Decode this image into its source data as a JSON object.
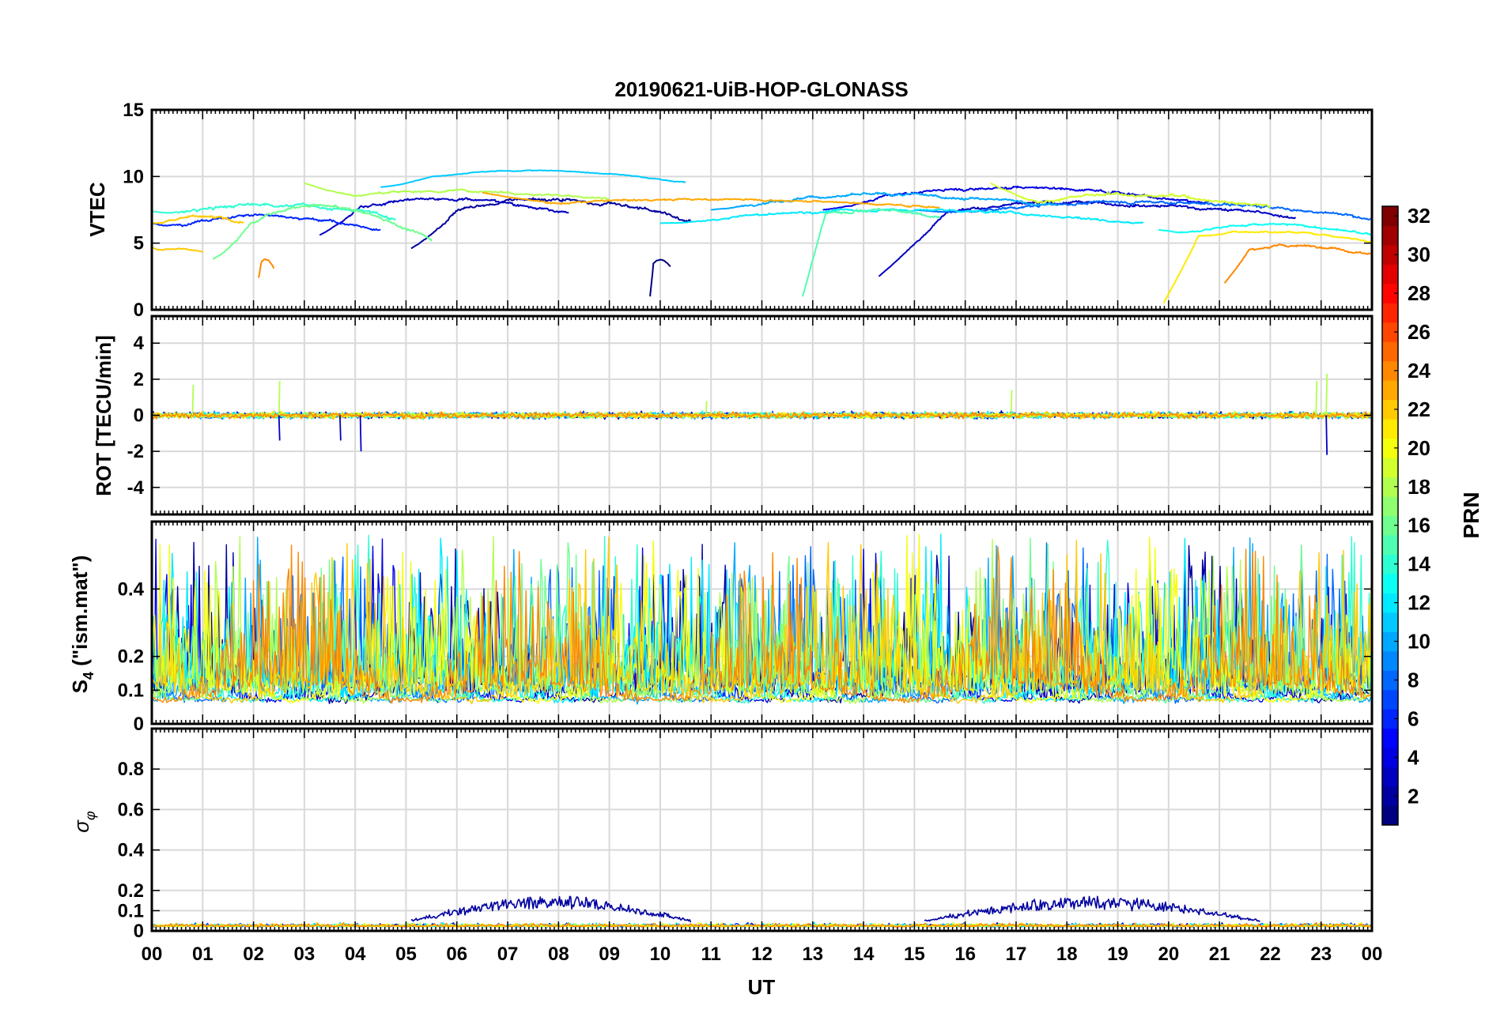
{
  "chart_data": {
    "type": "line",
    "title": "20190621-UiB-HOP-GLONASS",
    "xlabel": "UT",
    "x_range": [
      0,
      24
    ],
    "x_tick_labels": [
      "00",
      "01",
      "02",
      "03",
      "04",
      "05",
      "06",
      "07",
      "08",
      "09",
      "10",
      "11",
      "12",
      "13",
      "14",
      "15",
      "16",
      "17",
      "18",
      "19",
      "20",
      "21",
      "22",
      "23",
      "00"
    ],
    "grid": true,
    "legend": "colorbar right",
    "colorbar": {
      "label": "PRN",
      "range": [
        1,
        32
      ],
      "ticks": [
        "2",
        "4",
        "6",
        "8",
        "10",
        "12",
        "14",
        "16",
        "18",
        "20",
        "22",
        "24",
        "26",
        "28",
        "30",
        "32"
      ]
    },
    "panels": [
      {
        "id": "vtec",
        "ylabel": "VTEC",
        "ylim": [
          0,
          15
        ],
        "ytick_values": [
          0,
          5,
          10,
          15
        ],
        "ytick_labels": [
          "0",
          "5",
          "10",
          "15"
        ],
        "series": [
          {
            "prn": 2,
            "start": 5.1,
            "end": 10.6,
            "base": 7.5,
            "amp": 1.6,
            "noise": 0.35,
            "start_val": 4.6
          },
          {
            "prn": 3,
            "start": 3.3,
            "end": 8.2,
            "base": 7.8,
            "amp": 1.2,
            "noise": 0.3,
            "start_val": 5.6
          },
          {
            "prn": 1,
            "start": 9.8,
            "end": 10.2,
            "base": 3.5,
            "amp": 0.5,
            "noise": 0.1,
            "start_val": 1.0
          },
          {
            "prn": 4,
            "start": 13.2,
            "end": 20.8,
            "base": 8.6,
            "amp": 1.2,
            "noise": 0.3,
            "start_val": 7.5
          },
          {
            "prn": 3,
            "start": 14.3,
            "end": 22.5,
            "base": 7.5,
            "amp": 1.0,
            "noise": 0.3,
            "start_val": 2.5
          },
          {
            "prn": 6,
            "start": 0.0,
            "end": 4.5,
            "base": 6.5,
            "amp": 1.2,
            "noise": 0.3,
            "start_val": 6.5
          },
          {
            "prn": 8,
            "start": 15.0,
            "end": 24.0,
            "base": 7.5,
            "amp": 1.2,
            "noise": 0.3,
            "start_val": 7.5
          },
          {
            "prn": 10,
            "start": 11.0,
            "end": 17.8,
            "base": 8.2,
            "amp": 0.8,
            "noise": 0.3,
            "start_val": 7.5
          },
          {
            "prn": 11,
            "start": 4.5,
            "end": 10.5,
            "base": 10.0,
            "amp": 0.9,
            "noise": 0.1,
            "start_val": 9.2
          },
          {
            "prn": 12,
            "start": 10.0,
            "end": 19.5,
            "base": 7.0,
            "amp": 1.0,
            "noise": 0.25,
            "start_val": 6.5
          },
          {
            "prn": 13,
            "start": 19.8,
            "end": 24.0,
            "base": 6.0,
            "amp": 0.8,
            "noise": 0.25,
            "start_val": 6.0
          },
          {
            "prn": 14,
            "start": 0.0,
            "end": 4.8,
            "base": 7.4,
            "amp": 1.0,
            "noise": 0.35,
            "start_val": 7.4
          },
          {
            "prn": 15,
            "start": 12.8,
            "end": 15.5,
            "base": 7.2,
            "amp": 0.6,
            "noise": 0.4,
            "start_val": 1.0
          },
          {
            "prn": 16,
            "start": 1.2,
            "end": 5.5,
            "base": 6.5,
            "amp": 2.5,
            "noise": 0.35,
            "start_val": 3.8
          },
          {
            "prn": 18,
            "start": 3.0,
            "end": 9.0,
            "base": 8.6,
            "amp": 0.7,
            "noise": 0.25,
            "start_val": 9.5
          },
          {
            "prn": 19,
            "start": 16.5,
            "end": 22.0,
            "base": 8.2,
            "amp": 0.8,
            "noise": 0.35,
            "start_val": 9.5
          },
          {
            "prn": 21,
            "start": 19.9,
            "end": 24.0,
            "base": 5.5,
            "amp": 0.8,
            "noise": 0.2,
            "start_val": 0.5
          },
          {
            "prn": 22,
            "start": 0.0,
            "end": 1.0,
            "base": 4.5,
            "amp": 0.2,
            "noise": 0.15,
            "start_val": 4.7
          },
          {
            "prn": 23,
            "start": 6.5,
            "end": 15.5,
            "base": 8.0,
            "amp": 0.6,
            "noise": 0.2,
            "start_val": 8.8
          },
          {
            "prn": 24,
            "start": 2.1,
            "end": 2.4,
            "base": 3.5,
            "amp": 0.6,
            "noise": 0.2,
            "start_val": 2.4
          },
          {
            "prn": 24,
            "start": 21.1,
            "end": 24.0,
            "base": 4.5,
            "amp": 0.6,
            "noise": 0.25,
            "start_val": 2.0
          },
          {
            "prn": 22,
            "start": 0.0,
            "end": 1.8,
            "base": 6.7,
            "amp": 0.4,
            "noise": 0.3,
            "start_val": 6.5
          }
        ]
      },
      {
        "id": "rot",
        "ylabel": "ROT [TECU/min]",
        "ylim": [
          -5.5,
          5.5
        ],
        "ytick_values": [
          -4,
          -2,
          0,
          2,
          4
        ],
        "ytick_labels": [
          "-4",
          "-2",
          "0",
          "2",
          "4"
        ],
        "typical_range": [
          -0.5,
          0.5
        ],
        "spikes": [
          {
            "x": 0.8,
            "value": 1.7
          },
          {
            "x": 2.5,
            "value": 1.9
          },
          {
            "x": 2.5,
            "value": -1.4
          },
          {
            "x": 3.7,
            "value": -1.4
          },
          {
            "x": 4.1,
            "value": -2.0
          },
          {
            "x": 10.9,
            "value": 0.8
          },
          {
            "x": 16.9,
            "value": 1.4
          },
          {
            "x": 22.9,
            "value": 1.9
          },
          {
            "x": 23.1,
            "value": 2.3
          },
          {
            "x": 23.1,
            "value": -2.2
          }
        ]
      },
      {
        "id": "s4",
        "ylabel": "S4 (\"ism.mat\")",
        "ylabel_main": "S",
        "ylabel_sub": "4",
        "ylabel_rest": " (\"ism.mat\")",
        "ylim": [
          0,
          0.6
        ],
        "ytick_values": [
          0,
          0.1,
          0.2,
          0.4
        ],
        "ytick_labels": [
          "0",
          "0.1",
          "0.2",
          "0.4"
        ],
        "typical_range": [
          0.05,
          0.6
        ]
      },
      {
        "id": "sigma_phi",
        "ylabel": "σφ",
        "ylabel_main": "σ",
        "ylabel_sub": "φ",
        "ylim": [
          0,
          1.0
        ],
        "ytick_values": [
          0,
          0.1,
          0.2,
          0.4,
          0.6,
          0.8
        ],
        "ytick_labels": [
          "0",
          "0.1",
          "0.2",
          "0.4",
          "0.6",
          "0.8"
        ],
        "typical_range": [
          0.0,
          0.22
        ]
      }
    ]
  }
}
